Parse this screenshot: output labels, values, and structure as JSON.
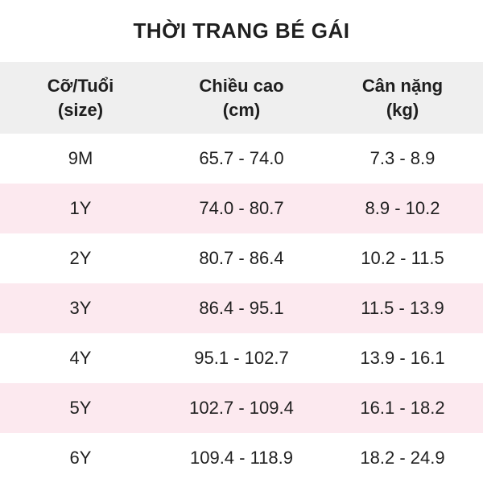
{
  "title": "THỜI TRANG BÉ GÁI",
  "colors": {
    "header_bg": "#efefef",
    "stripe_bg": "#fce9ef",
    "text": "#1f1f1f",
    "background": "#ffffff"
  },
  "table": {
    "headers": [
      {
        "label": "Cỡ/Tuổi",
        "unit": "(size)"
      },
      {
        "label": "Chiều cao",
        "unit": "(cm)"
      },
      {
        "label": "Cân nặng",
        "unit": "(kg)"
      }
    ],
    "rows": [
      {
        "size": "9M",
        "height": "65.7 - 74.0",
        "weight": "7.3 - 8.9"
      },
      {
        "size": "1Y",
        "height": "74.0 - 80.7",
        "weight": "8.9 - 10.2"
      },
      {
        "size": "2Y",
        "height": "80.7 - 86.4",
        "weight": "10.2 - 11.5"
      },
      {
        "size": "3Y",
        "height": "86.4 - 95.1",
        "weight": "11.5 - 13.9"
      },
      {
        "size": "4Y",
        "height": "95.1 - 102.7",
        "weight": "13.9 - 16.1"
      },
      {
        "size": "5Y",
        "height": "102.7 - 109.4",
        "weight": "16.1 - 18.2"
      },
      {
        "size": "6Y",
        "height": "109.4 - 118.9",
        "weight": "18.2 - 24.9"
      }
    ]
  },
  "chart_data": {
    "type": "table",
    "title": "THỜI TRANG BÉ GÁI",
    "columns": [
      "Cỡ/Tuổi (size)",
      "Chiều cao (cm)",
      "Cân nặng (kg)"
    ],
    "rows": [
      [
        "9M",
        "65.7 - 74.0",
        "7.3 - 8.9"
      ],
      [
        "1Y",
        "74.0 - 80.7",
        "8.9 - 10.2"
      ],
      [
        "2Y",
        "80.7 - 86.4",
        "10.2 - 11.5"
      ],
      [
        "3Y",
        "86.4 - 95.1",
        "11.5 - 13.9"
      ],
      [
        "4Y",
        "95.1 - 102.7",
        "13.9 - 16.1"
      ],
      [
        "5Y",
        "102.7 - 109.4",
        "16.1 - 18.2"
      ],
      [
        "6Y",
        "109.4 - 118.9",
        "18.2 - 24.9"
      ]
    ],
    "layout": {
      "striped": true,
      "stripe_rows": [
        1,
        3,
        5
      ],
      "header_background": "#efefef",
      "stripe_background": "#fce9ef"
    }
  }
}
